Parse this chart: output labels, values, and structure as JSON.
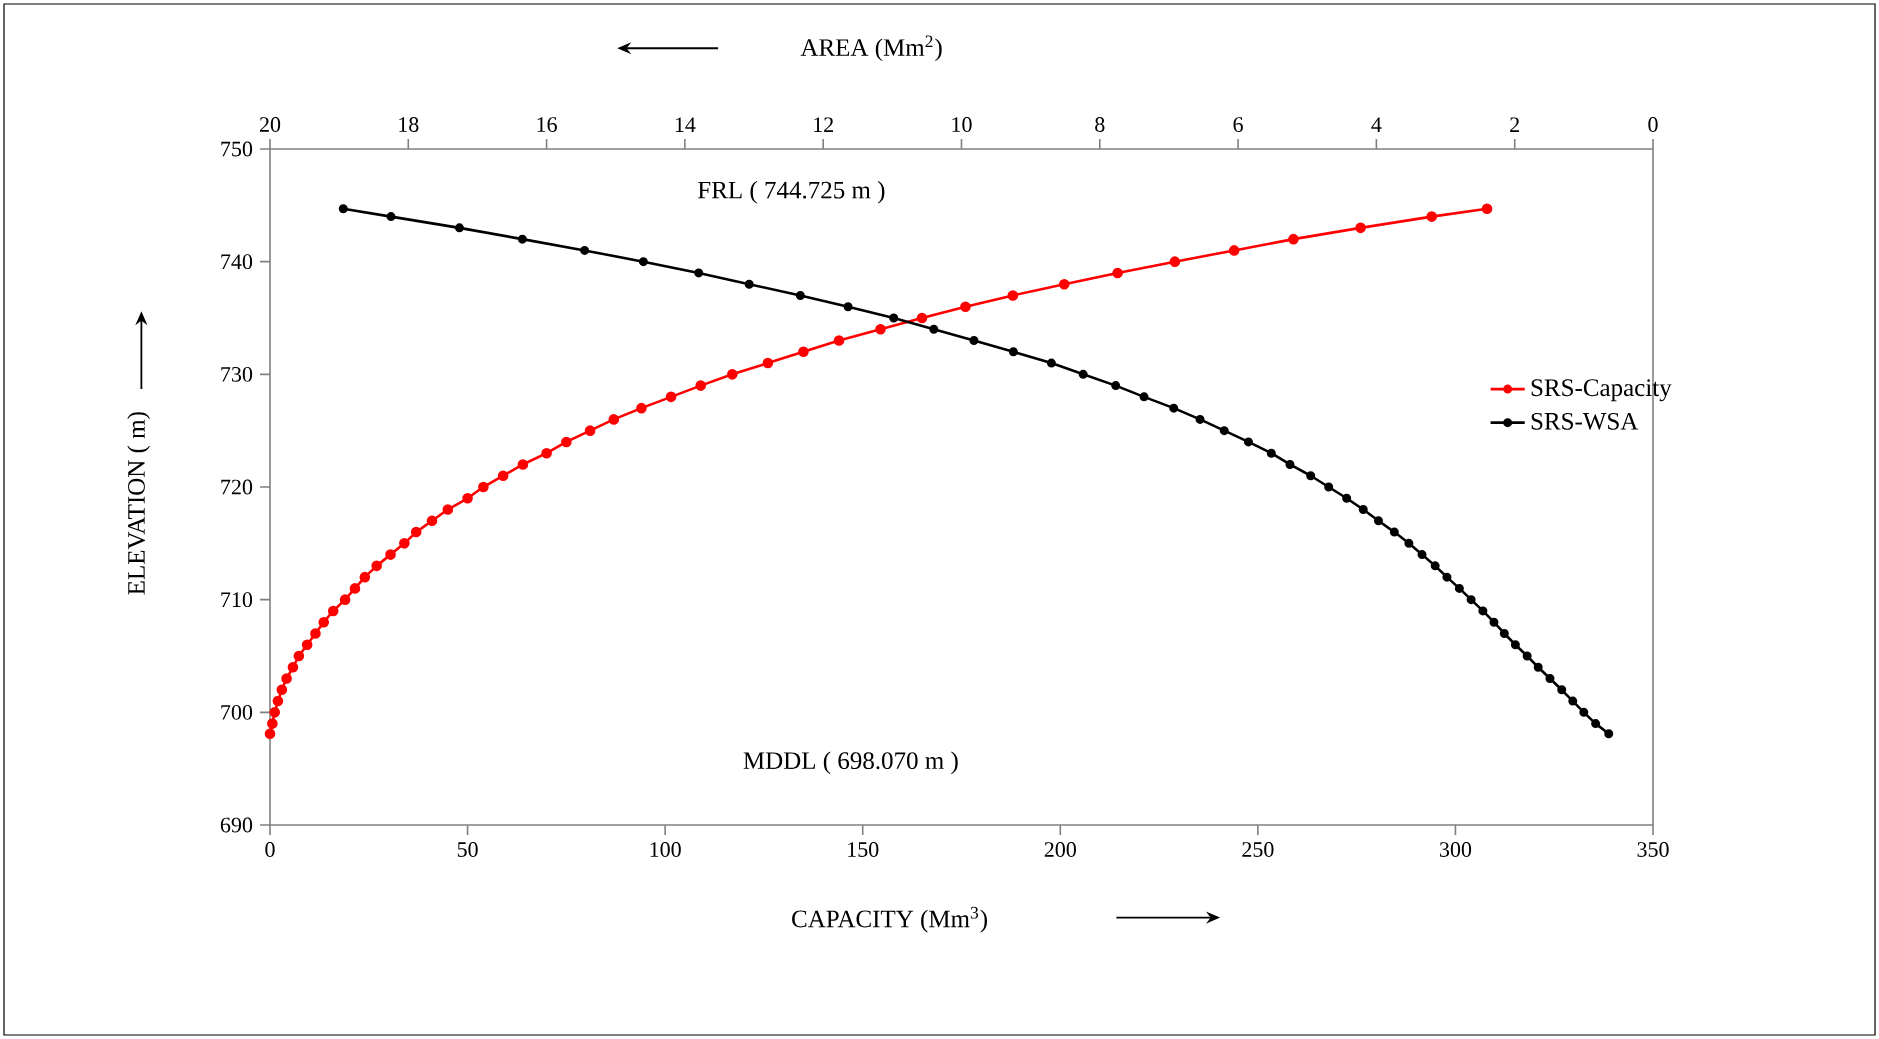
{
  "chart_data": {
    "type": "line",
    "xlabel": "CAPACITY   (Mm$^{3}$)",
    "x2label": "AREA  (Mm$^{2}$)",
    "ylabel": "ELEVATION   ( m)",
    "annotations": [
      "FRL  ( 744.725 m )",
      "MDDL  ( 698.070 m )"
    ],
    "xlim": [
      0,
      350
    ],
    "xticks": [
      0,
      50,
      100,
      150,
      200,
      250,
      300,
      350
    ],
    "x2lim": [
      20,
      0
    ],
    "x2ticks": [
      20,
      18,
      16,
      14,
      12,
      10,
      8,
      6,
      4,
      2,
      0
    ],
    "ylim": [
      690,
      750
    ],
    "yticks": [
      690,
      700,
      710,
      720,
      730,
      740,
      750
    ],
    "marker": "circle",
    "line_style": "solid",
    "legend": "right",
    "grid": false,
    "series": [
      {
        "name": "SRS-Capacity",
        "color": "#ff0000",
        "x": [
          0,
          0.6,
          1.2,
          2,
          3,
          4.2,
          5.8,
          7.3,
          9.4,
          11.5,
          13.6,
          16,
          19,
          21.5,
          24,
          27,
          30.5,
          34,
          37,
          41,
          45,
          50,
          54,
          59,
          64,
          70,
          75,
          81,
          87,
          94,
          101.5,
          109,
          117,
          126,
          135,
          144,
          154.5,
          165,
          176,
          188,
          201,
          214.5,
          229,
          244,
          259,
          276,
          294,
          308
        ],
        "values": [
          698.1,
          699,
          700,
          701,
          702,
          703,
          704,
          705,
          706,
          707,
          708,
          709,
          710,
          711,
          712,
          713,
          714,
          715,
          716,
          717,
          718,
          719,
          720,
          721,
          722,
          723,
          724,
          725,
          726,
          727,
          728,
          729,
          730,
          731,
          732,
          733,
          734,
          735,
          736,
          737,
          738,
          739,
          740,
          741,
          742,
          743,
          744,
          744.7
        ]
      },
      {
        "name": "SRS-WSA",
        "color": "#000000",
        "axis": "x2",
        "x": [
          0.64,
          0.83,
          1.0,
          1.16,
          1.32,
          1.49,
          1.66,
          1.82,
          1.99,
          2.15,
          2.3,
          2.46,
          2.63,
          2.8,
          2.98,
          3.15,
          3.34,
          3.53,
          3.74,
          3.97,
          4.19,
          4.43,
          4.69,
          4.95,
          5.25,
          5.52,
          5.85,
          6.2,
          6.55,
          6.93,
          7.36,
          7.77,
          8.24,
          8.7,
          9.25,
          9.82,
          10.4,
          10.98,
          11.64,
          12.33,
          13.07,
          13.8,
          14.6,
          15.45,
          16.35,
          17.26,
          18.25,
          18.94
        ],
        "values": [
          698.1,
          699,
          700,
          701,
          702,
          703,
          704,
          705,
          706,
          707,
          708,
          709,
          710,
          711,
          712,
          713,
          714,
          715,
          716,
          717,
          718,
          719,
          720,
          721,
          722,
          723,
          724,
          725,
          726,
          727,
          728,
          729,
          730,
          731,
          732,
          733,
          734,
          735,
          736,
          737,
          738,
          739,
          740,
          741,
          742,
          743,
          744,
          744.7
        ]
      }
    ]
  }
}
